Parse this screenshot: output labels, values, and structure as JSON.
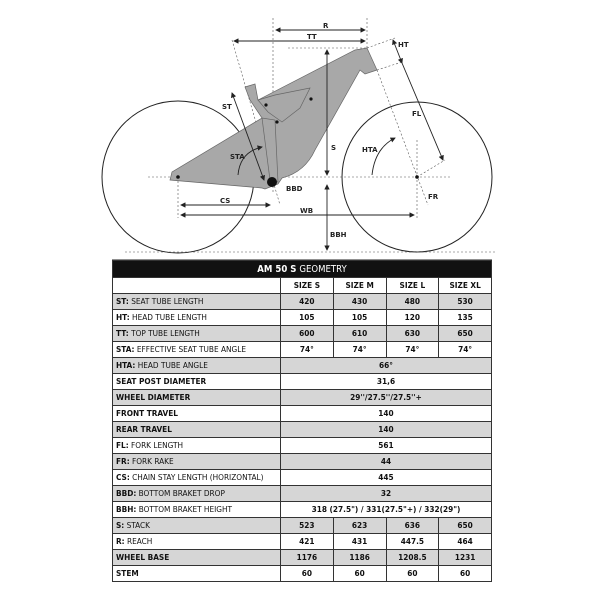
{
  "diagram": {
    "labels": {
      "R": "R",
      "TT": "TT",
      "HT": "HT",
      "ST": "ST",
      "S": "S",
      "STA": "STA",
      "HTA": "HTA",
      "FL": "FL",
      "FR": "FR",
      "CS": "CS",
      "WB": "WB",
      "BBD": "BBD",
      "BBH": "BBH"
    },
    "frame_color": "#a8a8a8"
  },
  "table": {
    "title_bold": "AM 50 S",
    "title_rest": "GEOMETRY",
    "sizes": [
      "SIZE S",
      "SIZE M",
      "SIZE L",
      "SIZE XL"
    ],
    "rows": [
      {
        "code": "ST:",
        "name": "SEAT TUBE LENGTH",
        "values": [
          "420",
          "430",
          "480",
          "530"
        ]
      },
      {
        "code": "HT:",
        "name": "HEAD TUBE LENGTH",
        "values": [
          "105",
          "105",
          "120",
          "135"
        ]
      },
      {
        "code": "TT:",
        "name": "TOP TUBE LENGTH",
        "values": [
          "600",
          "610",
          "630",
          "650"
        ]
      },
      {
        "code": "STA:",
        "name": "EFFECTIVE SEAT TUBE ANGLE",
        "values": [
          "74°",
          "74°",
          "74°",
          "74°"
        ]
      },
      {
        "code": "HTA:",
        "name": "HEAD TUBE ANGLE",
        "value": "66°"
      },
      {
        "code": "SEAT POST DIAMETER",
        "name": "",
        "value": "31,6"
      },
      {
        "code": "WHEEL DIAMETER",
        "name": "",
        "value": "29''/27.5''/27.5''+"
      },
      {
        "code": "FRONT TRAVEL",
        "name": "",
        "value": "140"
      },
      {
        "code": "REAR TRAVEL",
        "name": "",
        "value": "140"
      },
      {
        "code": "FL:",
        "name": "FORK LENGTH",
        "value": "561"
      },
      {
        "code": "FR:",
        "name": "FORK RAKE",
        "value": "44"
      },
      {
        "code": "CS:",
        "name": "CHAIN STAY LENGTH (HORIZONTAL)",
        "value": "445"
      },
      {
        "code": "BBD:",
        "name": "BOTTOM BRAKET DROP",
        "value": "32"
      },
      {
        "code": "BBH:",
        "name": "BOTTOM BRAKET HEIGHT",
        "value": "318 (27.5\") / 331(27.5\"+) / 332(29\")"
      },
      {
        "code": "S:",
        "name": "STACK",
        "values": [
          "523",
          "623",
          "636",
          "650"
        ]
      },
      {
        "code": "R:",
        "name": "REACH",
        "values": [
          "421",
          "431",
          "447.5",
          "464"
        ]
      },
      {
        "code": "WHEEL BASE",
        "name": "",
        "values": [
          "1176",
          "1186",
          "1208.5",
          "1231"
        ]
      },
      {
        "code": "STEM",
        "name": "",
        "values": [
          "60",
          "60",
          "60",
          "60"
        ]
      }
    ]
  }
}
